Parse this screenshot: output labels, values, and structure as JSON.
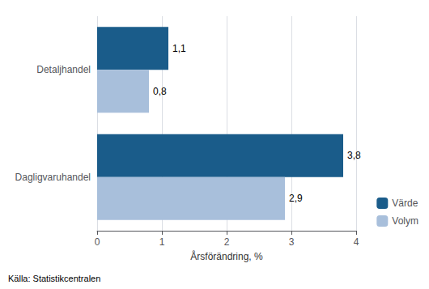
{
  "chart_data": {
    "type": "bar",
    "orientation": "horizontal",
    "xlabel": "Årsförändring, %",
    "categories": [
      "Dagligvaruhandel",
      "Detaljhandel"
    ],
    "series": [
      {
        "name": "Värde",
        "color": "#1a5c8a",
        "values": [
          3.8,
          1.1
        ],
        "value_labels": [
          "3,8",
          "1,1"
        ]
      },
      {
        "name": "Volym",
        "color": "#a8bfdb",
        "values": [
          2.9,
          0.8
        ],
        "value_labels": [
          "2,9",
          "0,8"
        ]
      }
    ],
    "xlim": [
      0,
      4
    ],
    "xticks": [
      0,
      1,
      2,
      3,
      4
    ],
    "grid": true,
    "legend": "lower right",
    "data_labels": true,
    "annotation": "Källa: Statistikcentralen"
  }
}
